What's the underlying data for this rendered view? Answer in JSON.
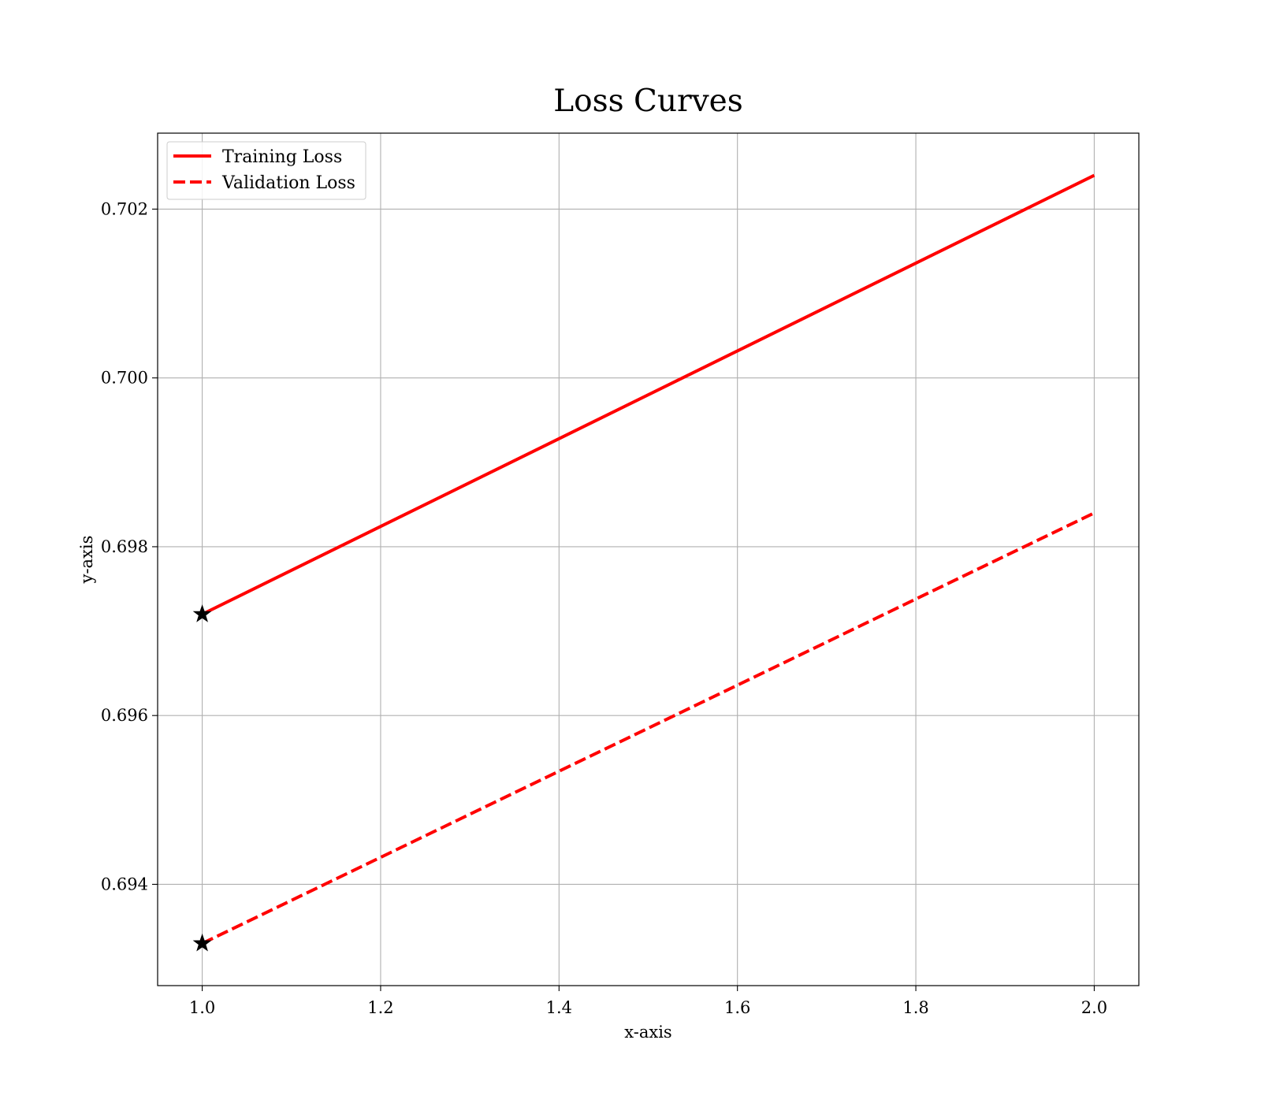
{
  "chart_data": {
    "type": "line",
    "title": "Loss Curves",
    "xlabel": "x-axis",
    "ylabel": "y-axis",
    "xlim": [
      0.95,
      2.05
    ],
    "ylim": [
      0.6928,
      0.7029
    ],
    "xticks": [
      1.0,
      1.2,
      1.4,
      1.6,
      1.8,
      2.0
    ],
    "xtick_labels": [
      "1.0",
      "1.2",
      "1.4",
      "1.6",
      "1.8",
      "2.0"
    ],
    "yticks": [
      0.694,
      0.696,
      0.698,
      0.7,
      0.702
    ],
    "ytick_labels": [
      "0.694",
      "0.696",
      "0.698",
      "0.700",
      "0.702"
    ],
    "grid": true,
    "legend_position": "top-left",
    "series": [
      {
        "name": "Training Loss",
        "x": [
          1.0,
          2.0
        ],
        "y": [
          0.6972,
          0.7024
        ],
        "color": "#ff0000",
        "line_style": "solid",
        "start_marker": "star"
      },
      {
        "name": "Validation Loss",
        "x": [
          1.0,
          2.0
        ],
        "y": [
          0.6933,
          0.6984
        ],
        "color": "#ff0000",
        "line_style": "dashed",
        "start_marker": "star"
      }
    ]
  }
}
